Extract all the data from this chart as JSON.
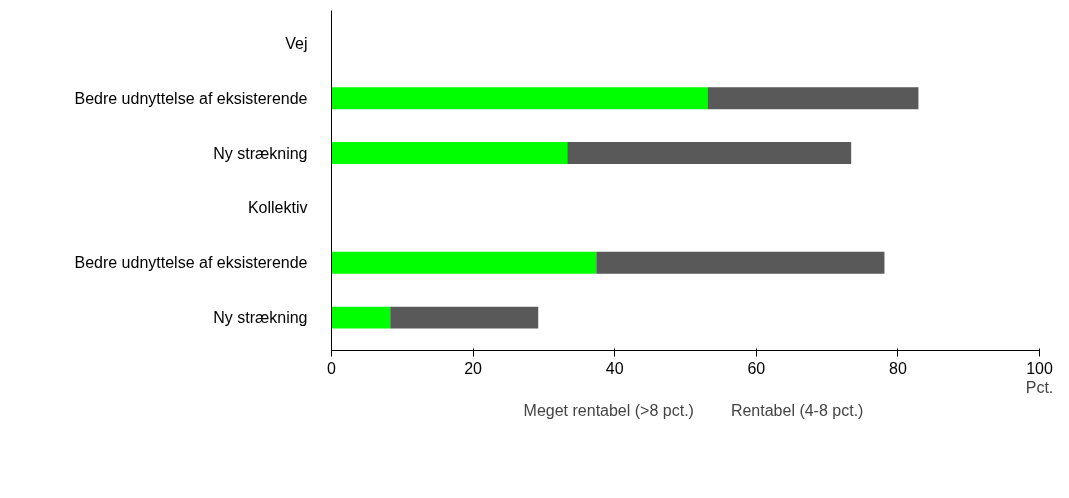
{
  "chart_data": {
    "type": "bar",
    "orientation": "horizontal",
    "stacked": true,
    "categories": [
      "Vej",
      "Bedre udnyttelse af eksisterende",
      "Ny strækning",
      "Kollektiv",
      "Bedre udnyttelse af eksisterende",
      "Ny strækning"
    ],
    "series": [
      {
        "name": "Meget rentabel (>8 pct.)",
        "color": "#00ff00",
        "values": [
          null,
          53.1,
          33.3,
          null,
          37.4,
          8.3
        ]
      },
      {
        "name": "Rentabel (4-8 pct.)",
        "color": "#595959",
        "values": [
          null,
          29.8,
          40.1,
          null,
          40.7,
          20.9
        ]
      }
    ],
    "xlim": [
      0,
      100
    ],
    "xticks": [
      0,
      20,
      40,
      60,
      80,
      100
    ],
    "xlabel": "Pct.",
    "legend": "bottom",
    "grid": false
  }
}
